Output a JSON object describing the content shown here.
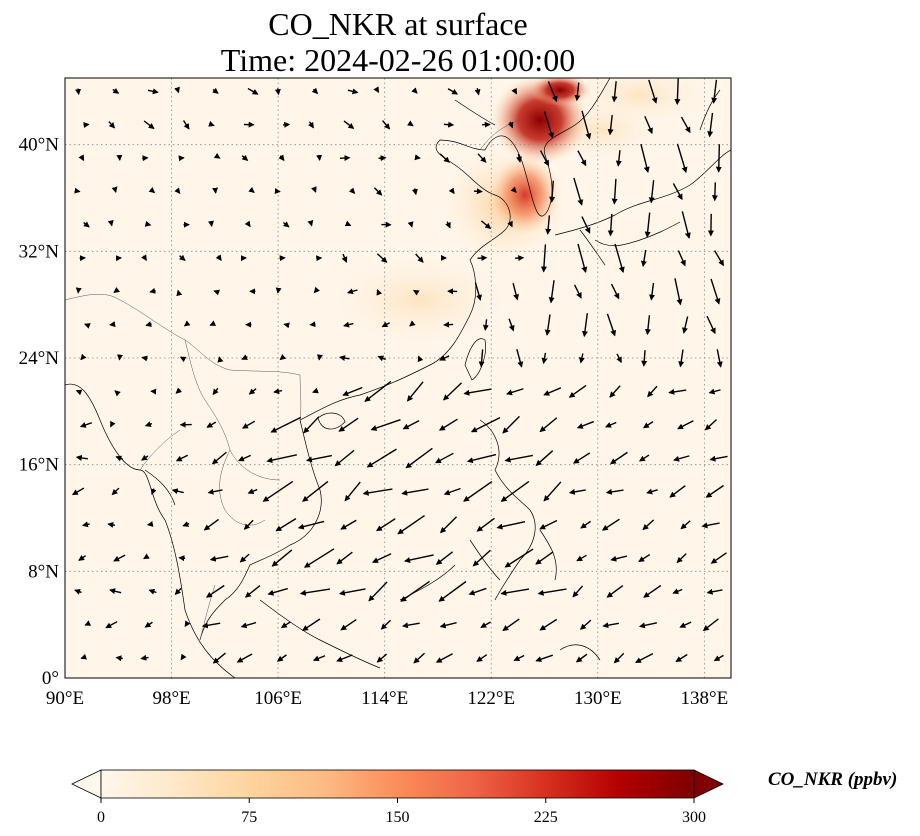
{
  "title_line1": "CO_NKR at surface",
  "title_line2": "Time: 2024-02-26 01:00:00",
  "map": {
    "projection": "PlateCarree",
    "lon_range": [
      90,
      140
    ],
    "lat_range": [
      0,
      45
    ],
    "gridlines": "dotted gray",
    "lon_ticks": [
      {
        "value": 90,
        "label": "90°E"
      },
      {
        "value": 98,
        "label": "98°E"
      },
      {
        "value": 106,
        "label": "106°E"
      },
      {
        "value": 114,
        "label": "114°E"
      },
      {
        "value": 122,
        "label": "122°E"
      },
      {
        "value": 130,
        "label": "130°E"
      },
      {
        "value": 138,
        "label": "138°E"
      }
    ],
    "lat_ticks": [
      {
        "value": 0,
        "label": "0°"
      },
      {
        "value": 8,
        "label": "8°N"
      },
      {
        "value": 16,
        "label": "16°N"
      },
      {
        "value": 24,
        "label": "24°N"
      },
      {
        "value": 32,
        "label": "32°N"
      },
      {
        "value": 40,
        "label": "40°N"
      }
    ],
    "field": "CO_NKR",
    "high_concentration_regions": [
      {
        "region": "NE China / North Korea border",
        "lon": 123.5,
        "lat": 42.5,
        "level": "high"
      },
      {
        "region": "Korean Peninsula west coast",
        "lon": 126,
        "lat": 36,
        "level": "high"
      },
      {
        "region": "Yellow Sea",
        "lon": 123,
        "lat": 34,
        "level": "medium"
      },
      {
        "region": "East China coast",
        "lon": 120,
        "lat": 29,
        "level": "low"
      }
    ],
    "wind_vectors": "quiver, predominantly NE winds over South China Sea"
  },
  "colorbar": {
    "label": "CO_NKR (ppbv)",
    "min": 0,
    "max": 300,
    "extend": "both",
    "colormap": "OrRd",
    "ticks": [
      "0",
      "75",
      "150",
      "225",
      "300"
    ],
    "colors": [
      "#fff7ec",
      "#fee8c8",
      "#fdd49e",
      "#fdbb84",
      "#fc8d59",
      "#ef6548",
      "#d7301f",
      "#b30000",
      "#7f0000"
    ]
  }
}
